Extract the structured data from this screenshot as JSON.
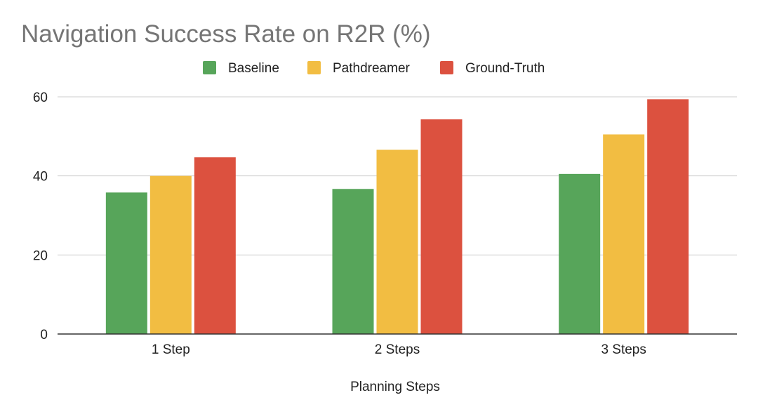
{
  "chart_data": {
    "type": "bar",
    "title": "Navigation Success Rate on R2R (%)",
    "xlabel": "Planning Steps",
    "ylabel": "",
    "categories": [
      "1 Step",
      "2 Steps",
      "3 Steps"
    ],
    "series": [
      {
        "name": "Baseline",
        "color": "#57a55a",
        "values": [
          35.8,
          36.7,
          40.5
        ]
      },
      {
        "name": "Pathdreamer",
        "color": "#f2bd42",
        "values": [
          40.0,
          46.6,
          50.5
        ]
      },
      {
        "name": "Ground-Truth",
        "color": "#dc513f",
        "values": [
          44.7,
          54.3,
          59.4
        ]
      }
    ],
    "ylim": [
      0,
      60
    ],
    "yticks": [
      0,
      20,
      40,
      60
    ],
    "grid": true,
    "legend_position": "top"
  }
}
